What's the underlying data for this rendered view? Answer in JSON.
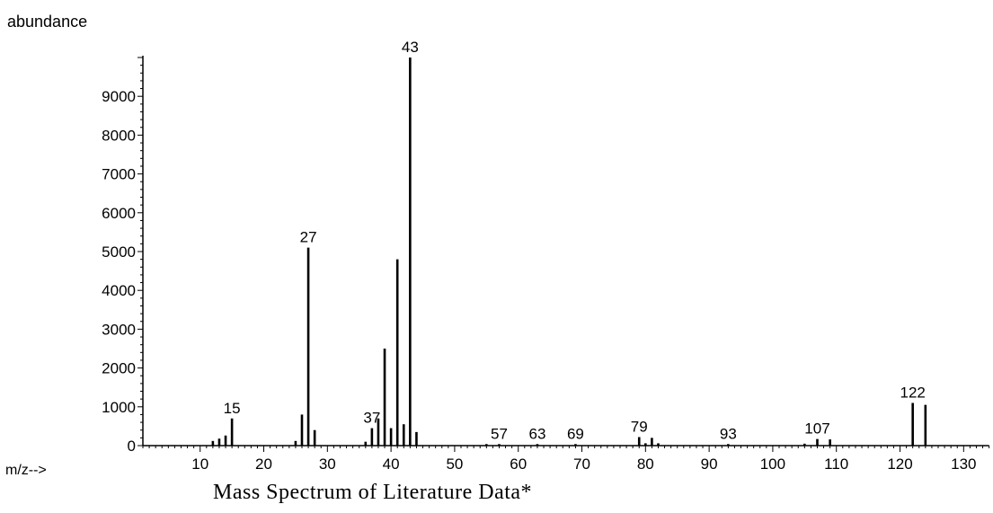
{
  "chart_data": {
    "type": "bar",
    "title": "Mass Spectrum of Literature Data*",
    "ylabel": "abundance",
    "xlabel": "m/z-->",
    "xlim": [
      1,
      134
    ],
    "ylim": [
      0,
      10000
    ],
    "x_ticks": [
      10,
      20,
      30,
      40,
      50,
      60,
      70,
      80,
      90,
      100,
      110,
      120,
      130
    ],
    "y_ticks": [
      0,
      1000,
      2000,
      3000,
      4000,
      5000,
      6000,
      7000,
      8000,
      9000
    ],
    "grid": false,
    "peaks": [
      {
        "x": 12,
        "y": 120
      },
      {
        "x": 13,
        "y": 180
      },
      {
        "x": 14,
        "y": 260
      },
      {
        "x": 15,
        "y": 700
      },
      {
        "x": 25,
        "y": 120
      },
      {
        "x": 26,
        "y": 800
      },
      {
        "x": 27,
        "y": 5100
      },
      {
        "x": 28,
        "y": 400
      },
      {
        "x": 36,
        "y": 100
      },
      {
        "x": 37,
        "y": 450
      },
      {
        "x": 38,
        "y": 700
      },
      {
        "x": 39,
        "y": 2500
      },
      {
        "x": 40,
        "y": 450
      },
      {
        "x": 41,
        "y": 4800
      },
      {
        "x": 42,
        "y": 550
      },
      {
        "x": 43,
        "y": 10000
      },
      {
        "x": 44,
        "y": 350
      },
      {
        "x": 55,
        "y": 40
      },
      {
        "x": 57,
        "y": 40
      },
      {
        "x": 63,
        "y": 40
      },
      {
        "x": 69,
        "y": 40
      },
      {
        "x": 79,
        "y": 220
      },
      {
        "x": 80,
        "y": 60
      },
      {
        "x": 81,
        "y": 200
      },
      {
        "x": 82,
        "y": 60
      },
      {
        "x": 93,
        "y": 40
      },
      {
        "x": 105,
        "y": 50
      },
      {
        "x": 107,
        "y": 170
      },
      {
        "x": 109,
        "y": 160
      },
      {
        "x": 122,
        "y": 1100
      },
      {
        "x": 124,
        "y": 1050
      }
    ],
    "peak_labels": [
      {
        "x": 15,
        "text": "15"
      },
      {
        "x": 27,
        "text": "27"
      },
      {
        "x": 37,
        "text": "37"
      },
      {
        "x": 43,
        "text": "43"
      },
      {
        "x": 57,
        "text": "57"
      },
      {
        "x": 63,
        "text": "63"
      },
      {
        "x": 69,
        "text": "69"
      },
      {
        "x": 79,
        "text": "79"
      },
      {
        "x": 93,
        "text": "93"
      },
      {
        "x": 107,
        "text": "107"
      },
      {
        "x": 122,
        "text": "122"
      }
    ]
  }
}
